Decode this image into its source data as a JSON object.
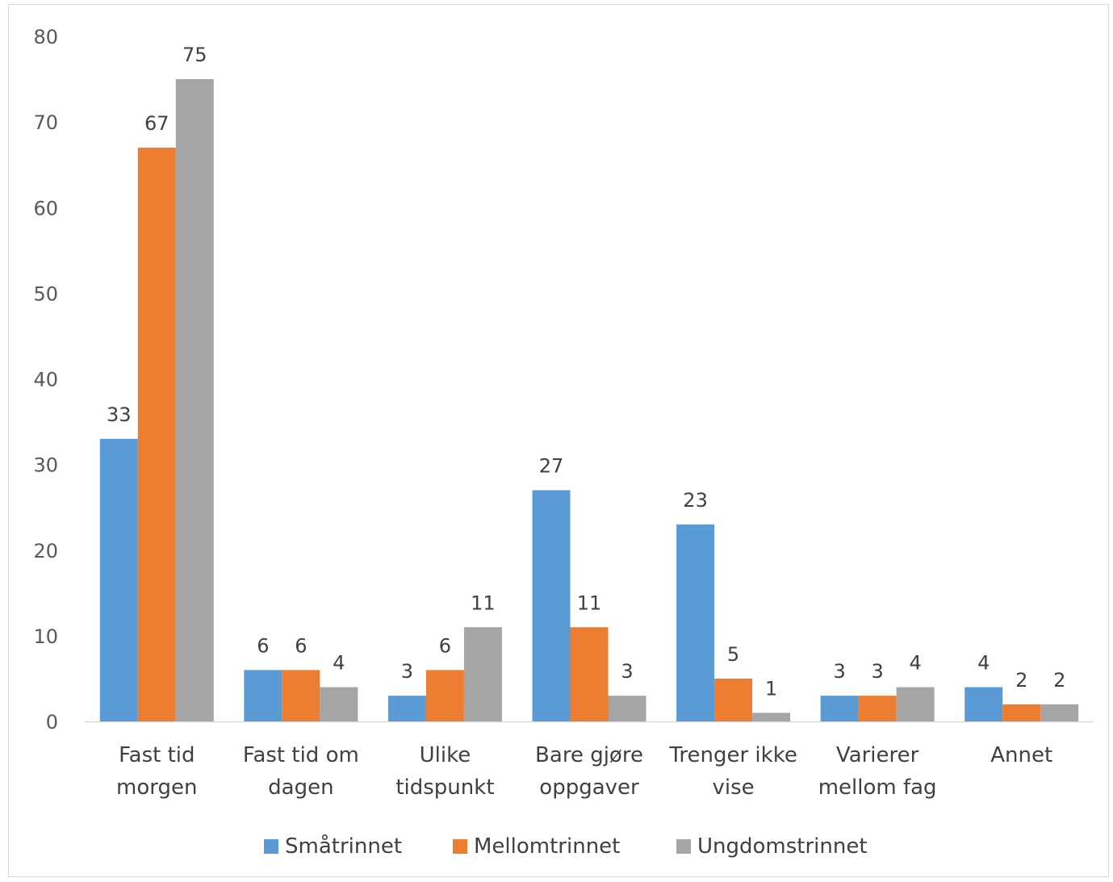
{
  "chart_data": {
    "type": "bar",
    "categories": [
      [
        "Fast tid",
        "morgen"
      ],
      [
        "Fast tid om",
        "dagen"
      ],
      [
        "Ulike",
        "tidspunkt"
      ],
      [
        "Bare gjøre",
        "oppgaver"
      ],
      [
        "Trenger ikke",
        "vise"
      ],
      [
        "Varierer",
        "mellom fag"
      ],
      [
        "Annet"
      ]
    ],
    "series": [
      {
        "name": "Småtrinnet",
        "color": "#5b9bd5",
        "values": [
          33,
          6,
          3,
          27,
          23,
          3,
          4
        ]
      },
      {
        "name": "Mellomtrinnet",
        "color": "#ed7d31",
        "values": [
          67,
          6,
          6,
          11,
          5,
          3,
          2
        ]
      },
      {
        "name": "Ungdomstrinnet",
        "color": "#a5a5a5",
        "values": [
          75,
          4,
          11,
          3,
          1,
          4,
          2
        ]
      }
    ],
    "ylim": [
      0,
      80
    ],
    "yticks": [
      0,
      10,
      20,
      30,
      40,
      50,
      60,
      70,
      80
    ],
    "grid": false,
    "legend": "bottom",
    "data_labels": true
  }
}
